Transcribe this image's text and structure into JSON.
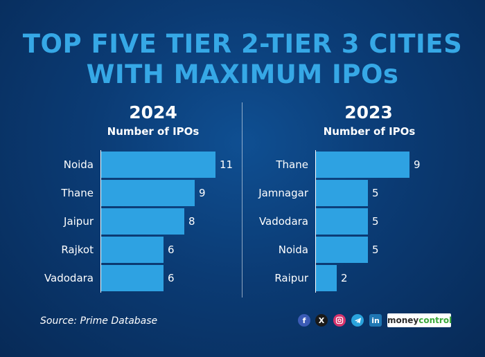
{
  "title_line1": "TOP FIVE TIER 2-TIER 3 CITIES",
  "title_line2": "WITH MAXIMUM IPOs",
  "source": "Source: Prime Database",
  "brand": {
    "part1": "money",
    "part2": "control"
  },
  "social_icons": [
    "facebook-icon",
    "x-icon",
    "instagram-icon",
    "telegram-icon",
    "linkedin-icon"
  ],
  "colors": {
    "bar": "#2ea2e2",
    "title": "#36a8e6",
    "background": "#0b3b74"
  },
  "chart_data": [
    {
      "type": "bar",
      "orientation": "horizontal",
      "title": "2024",
      "subtitle": "Number of IPOs",
      "categories": [
        "Noida",
        "Thane",
        "Jaipur",
        "Rajkot",
        "Vadodara"
      ],
      "values": [
        11,
        9,
        8,
        6,
        6
      ],
      "xlim": [
        0,
        11
      ],
      "grid": false
    },
    {
      "type": "bar",
      "orientation": "horizontal",
      "title": "2023",
      "subtitle": "Number of IPOs",
      "categories": [
        "Thane",
        "Jamnagar",
        "Vadodara",
        "Noida",
        "Raipur"
      ],
      "values": [
        9,
        5,
        5,
        5,
        2
      ],
      "xlim": [
        0,
        9
      ],
      "grid": false
    }
  ]
}
